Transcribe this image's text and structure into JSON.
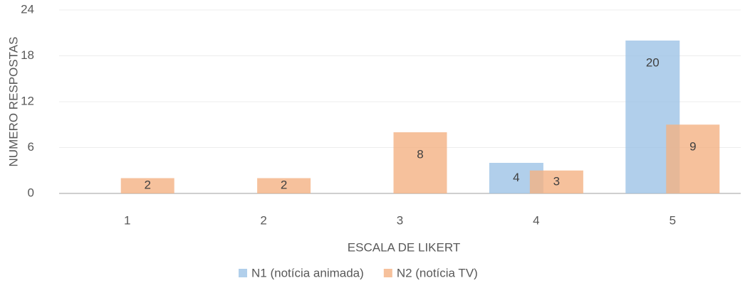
{
  "chart_data": {
    "type": "bar",
    "categories": [
      "1",
      "2",
      "3",
      "4",
      "5"
    ],
    "series": [
      {
        "name": "N1 (notícia animada)",
        "color": "#9dc3e6",
        "values": [
          null,
          null,
          null,
          4,
          20
        ]
      },
      {
        "name": "N2 (notícia TV)",
        "color": "#f4b183",
        "values": [
          2,
          2,
          8,
          3,
          9
        ]
      }
    ],
    "ylim": [
      0,
      24
    ],
    "yticks": [
      0,
      6,
      12,
      18,
      24
    ],
    "grid": true,
    "x_label": "ESCALA DE LIKERT",
    "y_label": "NUMERO RESPOSTAS",
    "legend": "bottom"
  }
}
